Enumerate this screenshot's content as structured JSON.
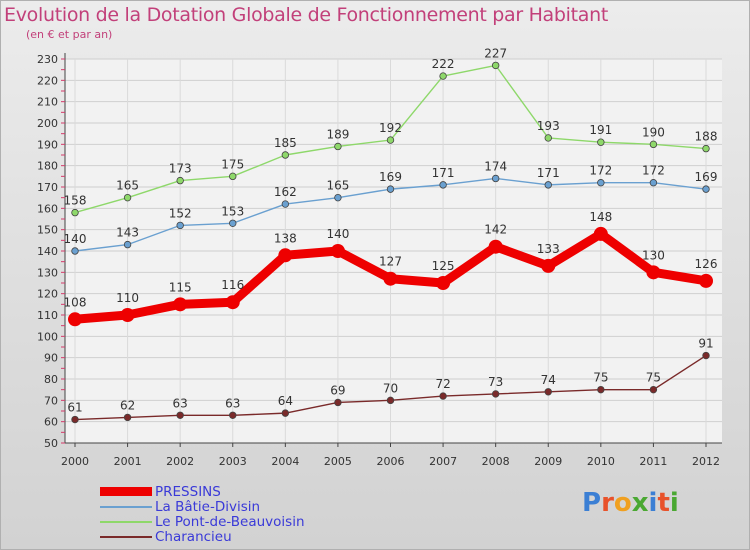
{
  "header": {
    "title": "Evolution de la Dotation Globale de Fonctionnement par Habitant",
    "subtitle": "(en € et par an)"
  },
  "logo": {
    "text": "Proxiti",
    "colors": [
      "#3b7fd4",
      "#e8522a",
      "#f0a020",
      "#4aa832",
      "#3b7fd4",
      "#e8522a",
      "#4aa832"
    ]
  },
  "chart_data": {
    "type": "line",
    "x": [
      "2000",
      "2001",
      "2002",
      "2003",
      "2004",
      "2005",
      "2006",
      "2007",
      "2008",
      "2009",
      "2010",
      "2011",
      "2012"
    ],
    "ylim": [
      50,
      230
    ],
    "yticks": [
      50,
      60,
      70,
      80,
      90,
      100,
      110,
      120,
      130,
      140,
      150,
      160,
      170,
      180,
      190,
      200,
      210,
      220,
      230
    ],
    "grid": true,
    "legend_position": "bottom-left",
    "series": [
      {
        "name": "PRESSINS",
        "color": "#ee0000",
        "values": [
          108,
          110,
          115,
          116,
          138,
          140,
          127,
          125,
          142,
          133,
          148,
          130,
          126
        ]
      },
      {
        "name": "La Bâtie-Divisin",
        "color": "#6aa0d0",
        "values": [
          140,
          143,
          152,
          153,
          162,
          165,
          169,
          171,
          174,
          171,
          172,
          172,
          169
        ]
      },
      {
        "name": "Le Pont-de-Beauvoisin",
        "color": "#8ed86a",
        "values": [
          158,
          165,
          173,
          175,
          185,
          189,
          192,
          222,
          227,
          193,
          191,
          190,
          188
        ]
      },
      {
        "name": "Charancieu",
        "color": "#7a2a2a",
        "values": [
          61,
          62,
          63,
          63,
          64,
          69,
          70,
          72,
          73,
          74,
          75,
          75,
          91
        ]
      }
    ]
  }
}
